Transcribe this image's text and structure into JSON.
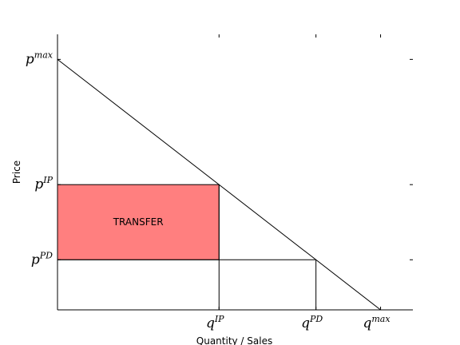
{
  "chart_data": {
    "type": "line",
    "xlabel": "Quantity / Sales",
    "ylabel": "Price",
    "xlim": [
      0,
      1.1
    ],
    "ylim": [
      0,
      1.1
    ],
    "demand_curve": {
      "x": [
        0,
        1
      ],
      "y": [
        1,
        0
      ]
    },
    "x_ticks": [
      {
        "value": 0.5,
        "base": "q",
        "sup": "IP"
      },
      {
        "value": 0.8,
        "base": "q",
        "sup": "PD"
      },
      {
        "value": 1.0,
        "base": "q",
        "sup": "max"
      }
    ],
    "y_ticks": [
      {
        "value": 1.0,
        "base": "p",
        "sup": "max"
      },
      {
        "value": 0.5,
        "base": "p",
        "sup": "IP"
      },
      {
        "value": 0.2,
        "base": "p",
        "sup": "PD"
      }
    ],
    "regions": [
      {
        "label": "TRANSFER",
        "x": [
          0,
          0.5
        ],
        "y": [
          0.2,
          0.5
        ],
        "color": "#ff7f7f"
      }
    ],
    "guide_lines": [
      {
        "x": [
          0.5,
          0.5
        ],
        "y": [
          0,
          0.5
        ]
      },
      {
        "x": [
          0.8,
          0.8
        ],
        "y": [
          0,
          0.2
        ]
      },
      {
        "x": [
          0,
          0.8
        ],
        "y": [
          0.2,
          0.2
        ]
      }
    ],
    "grid": false,
    "legend": "none"
  }
}
